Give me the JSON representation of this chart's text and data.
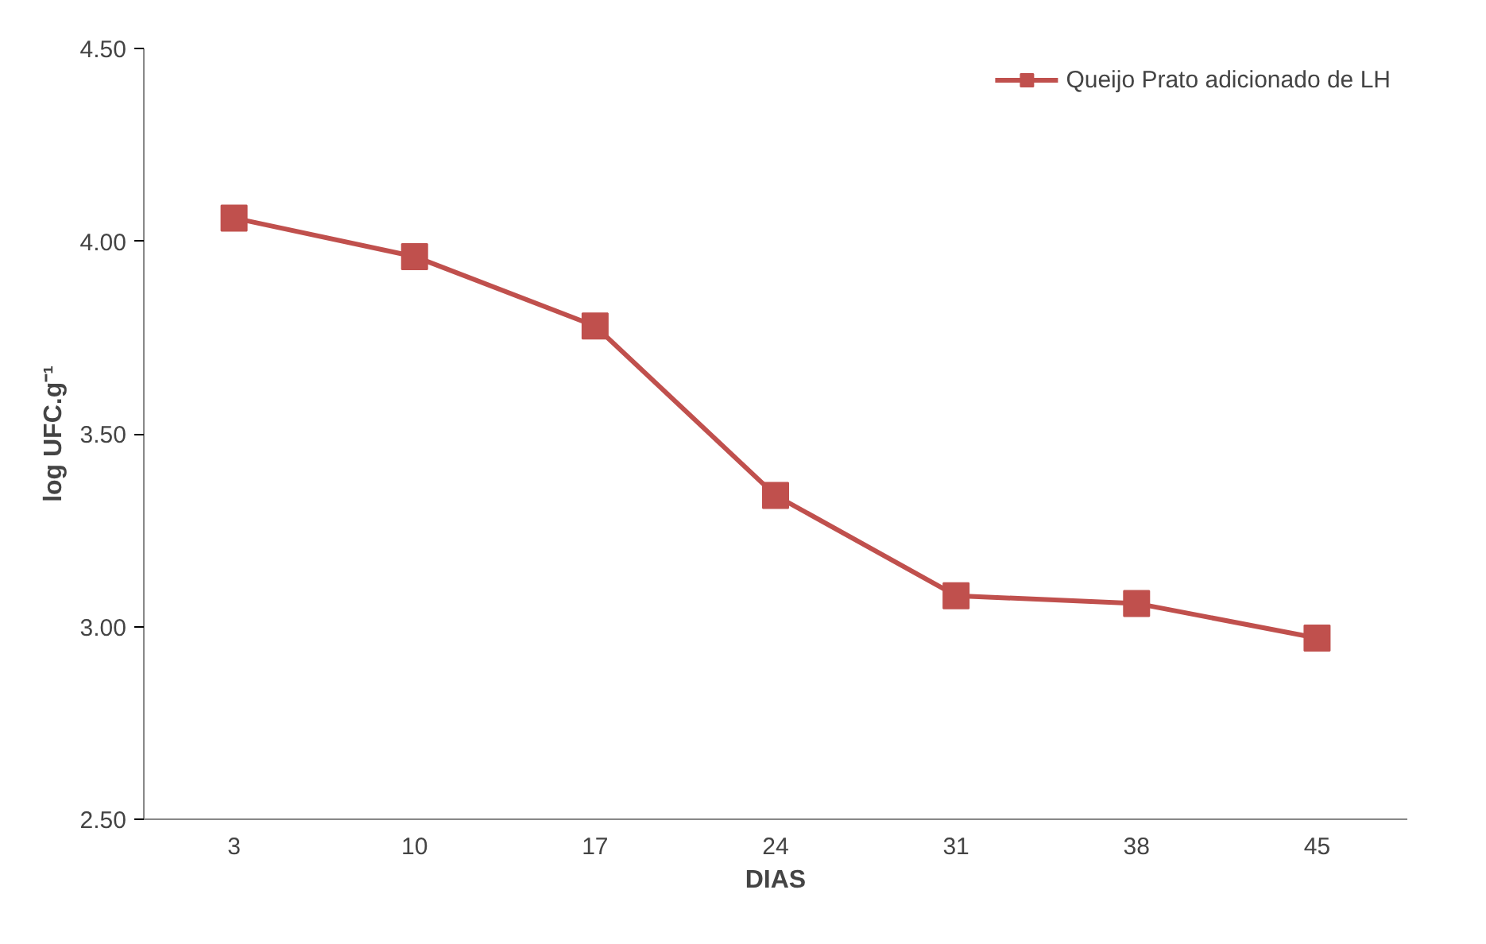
{
  "chart_data": {
    "type": "line",
    "xlabel": "DIAS",
    "ylabel": "log UFC.g⁻¹",
    "categories": [
      "3",
      "10",
      "17",
      "24",
      "31",
      "38",
      "45"
    ],
    "series": [
      {
        "name": "Queijo Prato adicionado de LH",
        "color": "#c0504d",
        "values": [
          4.06,
          3.96,
          3.78,
          3.34,
          3.08,
          3.06,
          2.97
        ]
      }
    ],
    "ylim": [
      2.5,
      4.5
    ],
    "yticks": [
      {
        "value": 2.5,
        "label": "2.50"
      },
      {
        "value": 3.0,
        "label": "3.00"
      },
      {
        "value": 3.5,
        "label": "3.50"
      },
      {
        "value": 4.0,
        "label": "4.00"
      },
      {
        "value": 4.5,
        "label": "4.50"
      }
    ],
    "grid": false,
    "legend": "top right",
    "marker": "square",
    "line_style": "solid"
  }
}
